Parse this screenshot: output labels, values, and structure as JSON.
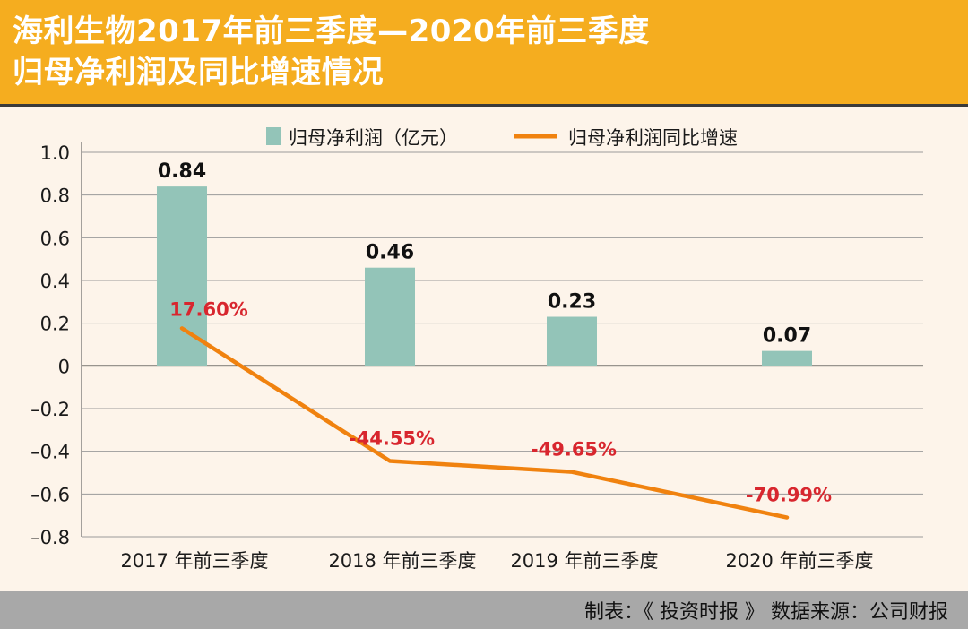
{
  "title": {
    "line1": "海利生物2017年前三季度—2020年前三季度",
    "line2": "归母净利润及同比增速情况"
  },
  "footer": {
    "text": "制表：《 投资时报 》  数据来源：公司财报"
  },
  "colors": {
    "header": "#f5ad1f",
    "bar": "#93c4b8",
    "line": "#f0820f",
    "line_labels": "#d8262e",
    "footer": "#a8a8a8"
  },
  "chart_data": {
    "type": "bar",
    "categories": [
      "2017 年前三季度",
      "2018 年前三季度",
      "2019 年前三季度",
      "2020 年前三季度"
    ],
    "series": [
      {
        "name": "归母净利润（亿元）",
        "type": "bar",
        "values": [
          0.84,
          0.46,
          0.23,
          0.07
        ],
        "labels": [
          "0.84",
          "0.46",
          "0.23",
          "0.07"
        ]
      },
      {
        "name": "归母净利润同比增速",
        "type": "line",
        "values": [
          0.176,
          -0.4455,
          -0.4965,
          -0.7099
        ],
        "labels": [
          "17.60%",
          "-44.55%",
          "-49.65%",
          "-70.99%"
        ]
      }
    ],
    "yticks": [
      "1.0",
      "0.8",
      "0.6",
      "0.4",
      "0.2",
      "0",
      "–0.2",
      "–0.4",
      "–0.6",
      "–0.8"
    ],
    "ylim": [
      -0.8,
      1.0
    ],
    "grid": true,
    "legend": "top-center"
  }
}
